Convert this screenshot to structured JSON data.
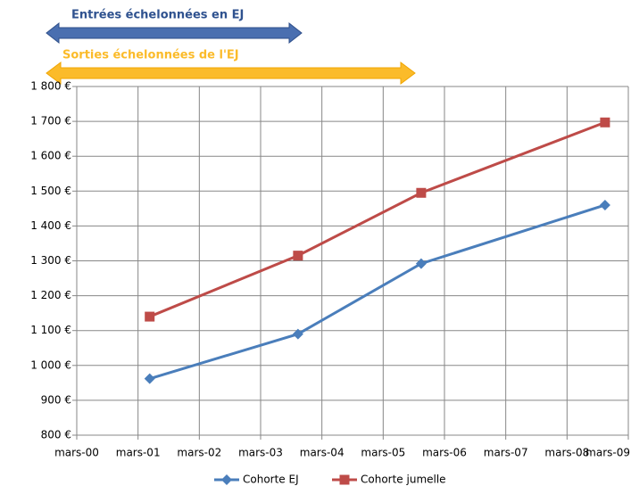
{
  "chart_data": {
    "type": "line",
    "annotations": [
      "Entrées échelonnées en EJ",
      "Sorties échelonnées de l'EJ"
    ],
    "x": [
      1.19,
      3.61,
      5.62,
      8.62
    ],
    "series": [
      {
        "name": "Cohorte EJ",
        "color": "#4a7ebb",
        "marker": "diamond",
        "values": [
          962,
          1090,
          1292,
          1460
        ]
      },
      {
        "name": "Cohorte jumelle",
        "color": "#be4b48",
        "marker": "square",
        "values": [
          1140,
          1315,
          1495,
          1697
        ]
      }
    ],
    "xlim": [
      0,
      9
    ],
    "xticks": [
      {
        "value": 0,
        "label": "mars-00"
      },
      {
        "value": 1,
        "label": "mars-01"
      },
      {
        "value": 2,
        "label": "mars-02"
      },
      {
        "value": 3,
        "label": "mars-03"
      },
      {
        "value": 4,
        "label": "mars-04"
      },
      {
        "value": 5,
        "label": "mars-05"
      },
      {
        "value": 6,
        "label": "mars-06"
      },
      {
        "value": 7,
        "label": "mars-07"
      },
      {
        "value": 8,
        "label": "mars-08"
      },
      {
        "value": 9,
        "label": "mars-09"
      }
    ],
    "ylim": [
      800,
      1800
    ],
    "yticks": [
      {
        "value": 800,
        "label": "800 €"
      },
      {
        "value": 900,
        "label": "900 €"
      },
      {
        "value": 1000,
        "label": "1 000 €"
      },
      {
        "value": 1100,
        "label": "1 100 €"
      },
      {
        "value": 1200,
        "label": "1 200 €"
      },
      {
        "value": 1300,
        "label": "1 300 €"
      },
      {
        "value": 1400,
        "label": "1 400 €"
      },
      {
        "value": 1500,
        "label": "1 500 €"
      },
      {
        "value": 1600,
        "label": "1 600 €"
      },
      {
        "value": 1700,
        "label": "1 700 €"
      },
      {
        "value": 1800,
        "label": "1 800 €"
      }
    ],
    "grid": true,
    "legend": "bottom"
  }
}
